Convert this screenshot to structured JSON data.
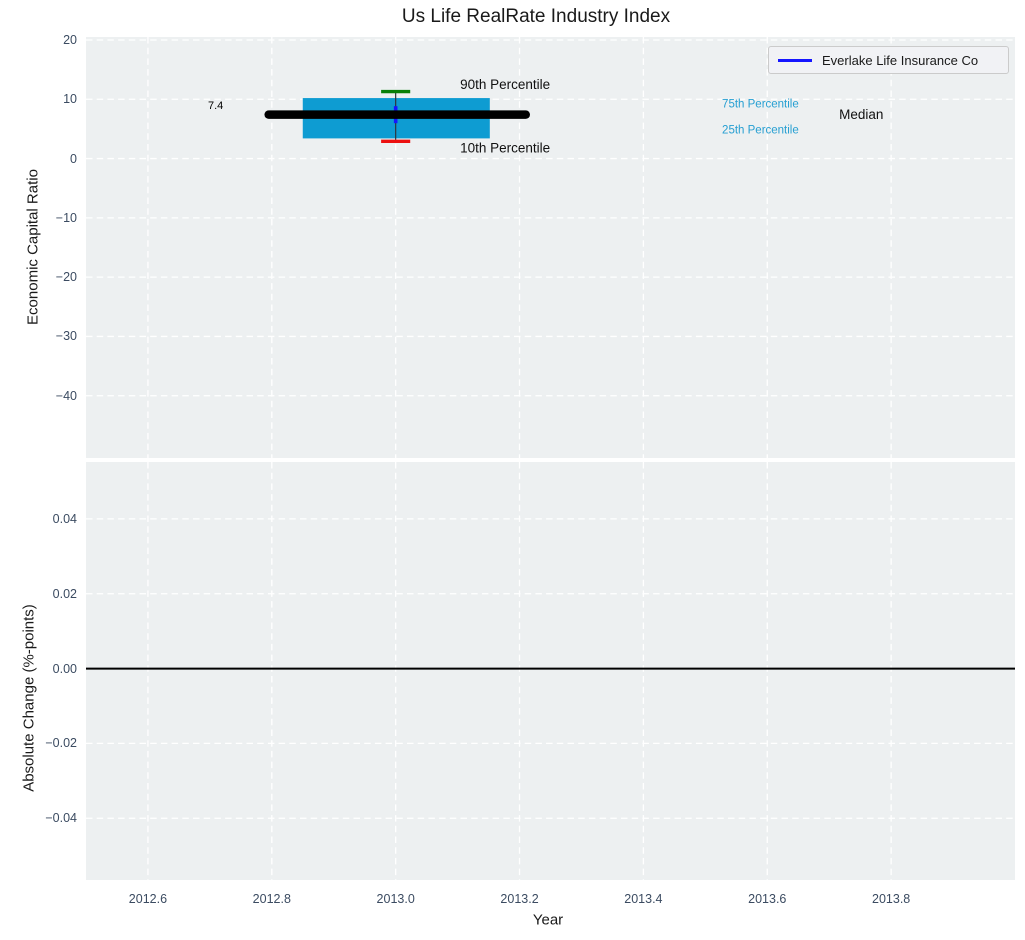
{
  "title": "Us Life RealRate Industry Index",
  "legend": {
    "label": "Everlake Life Insurance Co",
    "line_color": "#1515ff",
    "position": "upper right"
  },
  "colors": {
    "plot_background": "#edf0f1",
    "grid": "#ffffff",
    "tick_label": "#3b4b61",
    "axis_label": "#1a1a1a"
  },
  "chart_data": [
    {
      "type": "boxplot",
      "title": "Us Life RealRate Industry Index",
      "xlabel": "",
      "ylabel": "Economic Capital Ratio",
      "xlim": [
        2012.5,
        2014.0
      ],
      "ylim": [
        -50.5,
        20.5
      ],
      "xticks": [
        2012.6,
        2012.8,
        2013.0,
        2013.2,
        2013.4,
        2013.6,
        2013.8
      ],
      "yticks": [
        20,
        10,
        0,
        -10,
        -20,
        -30,
        -40
      ],
      "x_decimals": 1,
      "y_decimals": 0,
      "grid": "white-dashed",
      "legend_position": "upper right",
      "box": {
        "x": 2013.0,
        "median": 7.4,
        "q1": 3.4,
        "q3": 10.2,
        "p10": 2.9,
        "p90": 11.3,
        "box_x_range": [
          2012.85,
          2013.152
        ],
        "median_x_range": [
          2012.795,
          2013.21
        ],
        "cap_halfwidth": 0.0235,
        "colors": {
          "box": "#0e9cd2",
          "median": "#000000",
          "whisker": "#30363d",
          "p90_cap": "#088008",
          "p10_cap": "#ec1010",
          "company_marker": "#1515ff"
        },
        "company_point": {
          "x": 2013.0,
          "y": 7.4
        }
      },
      "annotations": [
        {
          "text": "7.4",
          "x": 2012.697,
          "y": 8.9,
          "color": "#000000",
          "size": 11
        },
        {
          "text": "90th Percentile",
          "x": 2013.104,
          "y": 12.5,
          "color": "#111111",
          "size": 13.5
        },
        {
          "text": "10th Percentile",
          "x": 2013.104,
          "y": 1.8,
          "color": "#111111",
          "size": 13.5
        },
        {
          "text": "75th Percentile",
          "x": 2013.527,
          "y": 9.1,
          "color": "#269fd2",
          "size": 11.5
        },
        {
          "text": "25th Percentile",
          "x": 2013.527,
          "y": 4.7,
          "color": "#269fd2",
          "size": 11.5
        },
        {
          "text": "Median",
          "x": 2013.716,
          "y": 7.4,
          "color": "#111111",
          "size": 13.5
        }
      ]
    },
    {
      "type": "line",
      "title": "",
      "xlabel": "Year",
      "ylabel": "Absolute Change (%-points)",
      "xlim": [
        2012.5,
        2014.0
      ],
      "ylim": [
        -0.0565,
        0.0552
      ],
      "xticks": [
        2012.6,
        2012.8,
        2013.0,
        2013.2,
        2013.4,
        2013.6,
        2013.8
      ],
      "yticks": [
        0.04,
        0.02,
        0.0,
        -0.02,
        -0.04
      ],
      "x_decimals": 1,
      "y_decimals": 2,
      "grid": "white-dashed",
      "series": [
        {
          "name": "zero-change-baseline",
          "x": [
            2012.5,
            2014.0
          ],
          "y": [
            0.0,
            0.0
          ],
          "color": "#000000",
          "width": 2
        }
      ]
    }
  ]
}
